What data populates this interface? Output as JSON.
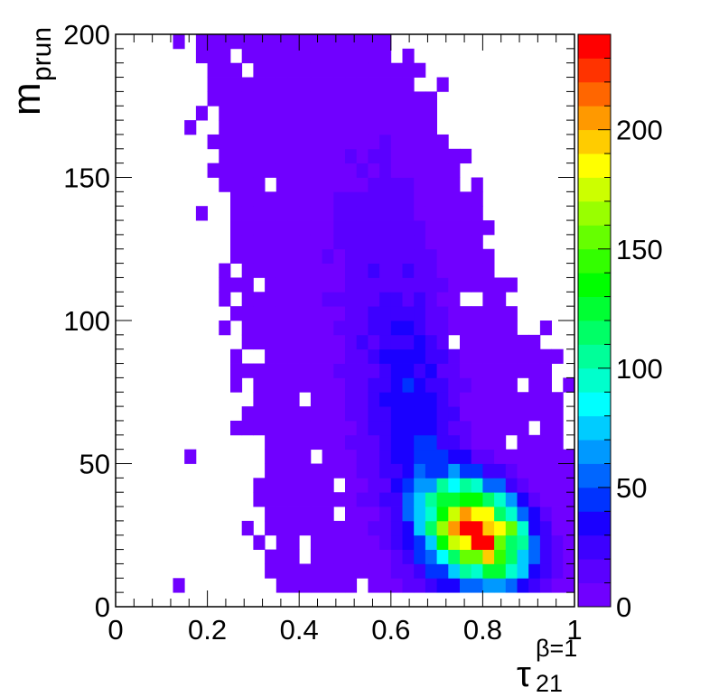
{
  "chart_data": {
    "type": "heatmap",
    "title": "",
    "xlabel": "τ",
    "xlabel_sup": "β=1",
    "xlabel_sub": "21",
    "ylabel": "m",
    "ylabel_sub": "prun",
    "xlim": [
      0,
      1
    ],
    "ylim": [
      0,
      200
    ],
    "zlim": [
      0,
      240
    ],
    "x_bins": 40,
    "y_bins": 40,
    "x_ticks": [
      0,
      0.2,
      0.4,
      0.6,
      0.8,
      1
    ],
    "x_tick_labels": [
      "0",
      "0.2",
      "0.4",
      "0.6",
      "0.8",
      "1"
    ],
    "y_ticks": [
      0,
      50,
      100,
      150,
      200
    ],
    "y_tick_labels": [
      "0",
      "50",
      "100",
      "150",
      "200"
    ],
    "z_ticks": [
      0,
      50,
      100,
      150,
      200
    ],
    "z_tick_labels": [
      "0",
      "50",
      "100",
      "150",
      "200"
    ],
    "colorbar": "right",
    "palette": [
      "#7000ff",
      "#5a00ff",
      "#3d00ff",
      "#1a00ff",
      "#0033ff",
      "#0066ff",
      "#0099ff",
      "#00ccff",
      "#00ffff",
      "#00ffcc",
      "#00ff99",
      "#00ff66",
      "#00ff33",
      "#00ff00",
      "#33ff00",
      "#66ff00",
      "#99ff00",
      "#ccff00",
      "#ffff00",
      "#ffcc00",
      "#ff9900",
      "#ff6600",
      "#ff3300",
      "#ff0000"
    ],
    "peak": {
      "x": 0.79,
      "y": 26,
      "value": 240
    }
  }
}
